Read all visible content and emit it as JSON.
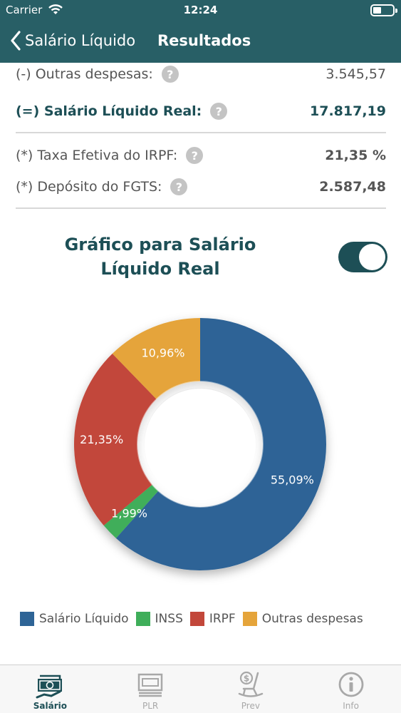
{
  "status_bar": {
    "carrier": "Carrier",
    "time": "12:24"
  },
  "nav": {
    "back_label": "Salário Líquido",
    "title": "Resultados"
  },
  "rows": [
    {
      "label": "(-) Outras despesas:",
      "value": "3.545,57",
      "help": "?"
    },
    {
      "label": "(=) Salário Líquido Real:",
      "value": "17.817,19",
      "help": "?"
    },
    {
      "label": "(*) Taxa Efetiva do IRPF:",
      "value": "21,35 %",
      "help": "?"
    },
    {
      "label": "(*) Depósito do FGTS:",
      "value": "2.587,48",
      "help": "?"
    }
  ],
  "chart_section": {
    "title": "Gráfico para Salário Líquido Real",
    "toggle_on": true
  },
  "chart_data": {
    "type": "pie",
    "donut": true,
    "categories": [
      "Salário Líquido",
      "INSS",
      "IRPF",
      "Outras despesas"
    ],
    "values": [
      55.09,
      1.99,
      21.35,
      10.96
    ],
    "labels": [
      "55,09%",
      "1,99%",
      "21,35%",
      "10,96%"
    ],
    "colors": [
      "#2e6496",
      "#3fae5a",
      "#c2473a",
      "#e5a43a"
    ],
    "legend_position": "bottom"
  },
  "tabs": [
    {
      "label": "Salário",
      "icon": "money-bill-icon",
      "active": true
    },
    {
      "label": "PLR",
      "icon": "money-stack-icon",
      "active": false
    },
    {
      "label": "Prev",
      "icon": "rocking-chair-icon",
      "active": false
    },
    {
      "label": "Info",
      "icon": "info-icon",
      "active": false
    }
  ]
}
